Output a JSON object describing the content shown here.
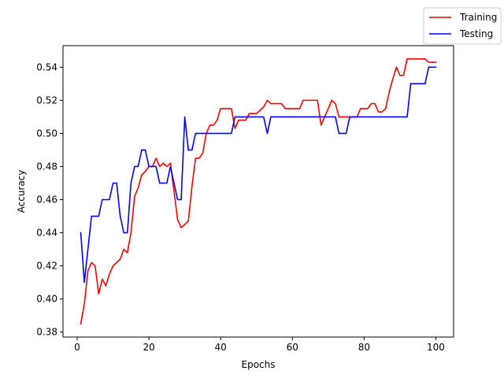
{
  "chart_data": {
    "type": "line",
    "title": "",
    "xlabel": "Epochs",
    "ylabel": "Accuracy",
    "xlim": [
      -3.95,
      104.95
    ],
    "ylim": [
      0.377,
      0.553
    ],
    "xticks": [
      0,
      20,
      40,
      60,
      80,
      100
    ],
    "yticks": [
      0.38,
      0.4,
      0.42,
      0.44,
      0.46,
      0.48,
      0.5,
      0.52,
      0.54
    ],
    "ytick_labels": [
      "0.38",
      "0.40",
      "0.42",
      "0.44",
      "0.46",
      "0.48",
      "0.50",
      "0.52",
      "0.54"
    ],
    "grid": false,
    "legend": {
      "placement": "top-right, outside axes"
    },
    "x": [
      1,
      2,
      3,
      4,
      5,
      6,
      7,
      8,
      9,
      10,
      11,
      12,
      13,
      14,
      15,
      16,
      17,
      18,
      19,
      20,
      21,
      22,
      23,
      24,
      25,
      26,
      27,
      28,
      29,
      30,
      31,
      32,
      33,
      34,
      35,
      36,
      37,
      38,
      39,
      40,
      41,
      42,
      43,
      44,
      45,
      46,
      47,
      48,
      49,
      50,
      51,
      52,
      53,
      54,
      55,
      56,
      57,
      58,
      59,
      60,
      61,
      62,
      63,
      64,
      65,
      66,
      67,
      68,
      69,
      70,
      71,
      72,
      73,
      74,
      75,
      76,
      77,
      78,
      79,
      80,
      81,
      82,
      83,
      84,
      85,
      86,
      87,
      88,
      89,
      90,
      91,
      92,
      93,
      94,
      95,
      96,
      97,
      98,
      99,
      100
    ],
    "series": [
      {
        "name": "Training",
        "color": "#ff0000",
        "values": [
          0.385,
          0.397,
          0.417,
          0.422,
          0.42,
          0.403,
          0.412,
          0.408,
          0.415,
          0.42,
          0.422,
          0.424,
          0.43,
          0.428,
          0.44,
          0.462,
          0.467,
          0.475,
          0.477,
          0.48,
          0.48,
          0.485,
          0.48,
          0.482,
          0.48,
          0.482,
          0.465,
          0.448,
          0.443,
          0.445,
          0.447,
          0.468,
          0.485,
          0.485,
          0.488,
          0.5,
          0.505,
          0.505,
          0.508,
          0.515,
          0.515,
          0.515,
          0.515,
          0.503,
          0.508,
          0.508,
          0.508,
          0.512,
          0.512,
          0.512,
          0.514,
          0.516,
          0.52,
          0.518,
          0.518,
          0.518,
          0.518,
          0.515,
          0.515,
          0.515,
          0.515,
          0.515,
          0.52,
          0.52,
          0.52,
          0.52,
          0.52,
          0.505,
          0.51,
          0.515,
          0.52,
          0.518,
          0.51,
          0.51,
          0.51,
          0.51,
          0.51,
          0.51,
          0.515,
          0.515,
          0.515,
          0.518,
          0.518,
          0.513,
          0.513,
          0.515,
          0.525,
          0.533,
          0.54,
          0.535,
          0.535,
          0.545,
          0.545,
          0.545,
          0.545,
          0.545,
          0.545,
          0.543,
          0.543,
          0.543
        ]
      },
      {
        "name": "Testing",
        "color": "#0000ff",
        "values": [
          0.44,
          0.41,
          0.43,
          0.45,
          0.45,
          0.45,
          0.46,
          0.46,
          0.46,
          0.47,
          0.47,
          0.45,
          0.44,
          0.44,
          0.47,
          0.48,
          0.48,
          0.49,
          0.49,
          0.48,
          0.48,
          0.48,
          0.47,
          0.47,
          0.47,
          0.48,
          0.47,
          0.46,
          0.46,
          0.51,
          0.49,
          0.49,
          0.5,
          0.5,
          0.5,
          0.5,
          0.5,
          0.5,
          0.5,
          0.5,
          0.5,
          0.5,
          0.5,
          0.51,
          0.51,
          0.51,
          0.51,
          0.51,
          0.51,
          0.51,
          0.51,
          0.51,
          0.5,
          0.51,
          0.51,
          0.51,
          0.51,
          0.51,
          0.51,
          0.51,
          0.51,
          0.51,
          0.51,
          0.51,
          0.51,
          0.51,
          0.51,
          0.51,
          0.51,
          0.51,
          0.51,
          0.51,
          0.5,
          0.5,
          0.5,
          0.51,
          0.51,
          0.51,
          0.51,
          0.51,
          0.51,
          0.51,
          0.51,
          0.51,
          0.51,
          0.51,
          0.51,
          0.51,
          0.51,
          0.51,
          0.51,
          0.51,
          0.53,
          0.53,
          0.53,
          0.53,
          0.53,
          0.54,
          0.54,
          0.54
        ]
      }
    ]
  }
}
